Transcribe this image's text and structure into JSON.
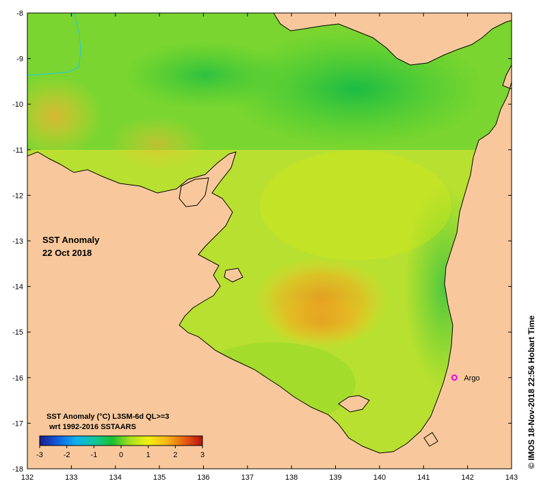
{
  "map": {
    "title_line1": "SST Anomaly",
    "title_line2": "22 Oct 2018",
    "longitude_ticks": [
      "132",
      "133",
      "134",
      "135",
      "136",
      "137",
      "138",
      "139",
      "140",
      "141",
      "142",
      "143"
    ],
    "latitude_ticks": [
      "-8",
      "-9",
      "-10",
      "-11",
      "-12",
      "-13",
      "-14",
      "-15",
      "-16",
      "-17",
      "-18"
    ],
    "extent": {
      "lon": [
        132,
        143
      ],
      "lat": [
        -18,
        -8
      ]
    },
    "marker": {
      "label": "Argo",
      "lon": 141.7,
      "lat": -16.0,
      "color": "#e000e0"
    },
    "land_color": "#f8c89c"
  },
  "colorbar": {
    "title_line1": "SST Anomaly (°C) L3SM-6d QL>=3",
    "title_line2": "wrt 1992-2016 SSTAARS",
    "ticks": [
      "-3",
      "-2",
      "-1",
      "0",
      "1",
      "2",
      "3"
    ],
    "range": [
      -3,
      3
    ],
    "colors": [
      "#1a1a8c",
      "#1060e0",
      "#10b0f0",
      "#10c8a0",
      "#18c030",
      "#a8e020",
      "#f0f010",
      "#f8b818",
      "#e86010",
      "#b81010"
    ]
  },
  "credit": "© IMOS 18-Nov-2018 22:56 Hobart Time"
}
